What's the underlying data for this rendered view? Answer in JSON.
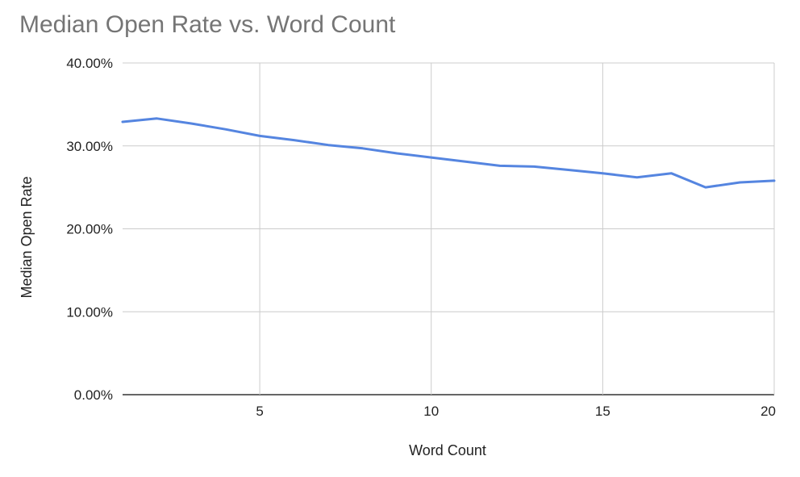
{
  "chart_data": {
    "type": "line",
    "title": "Median Open Rate vs. Word Count",
    "xlabel": "Word Count",
    "ylabel": "Median Open Rate",
    "xlim": [
      1,
      20
    ],
    "ylim": [
      0,
      0.4
    ],
    "x_ticks": [
      5,
      10,
      15,
      20
    ],
    "x_tick_labels": [
      "5",
      "10",
      "15",
      "20"
    ],
    "y_ticks": [
      0,
      0.1,
      0.2,
      0.3,
      0.4
    ],
    "y_tick_labels": [
      "0.00%",
      "10.00%",
      "20.00%",
      "30.00%",
      "40.00%"
    ],
    "grid": true,
    "legend": "none",
    "series": [
      {
        "color": "#5585e0",
        "x": [
          1,
          2,
          3,
          4,
          5,
          6,
          7,
          8,
          9,
          10,
          11,
          12,
          13,
          14,
          15,
          16,
          17,
          18,
          19,
          20
        ],
        "values": [
          0.329,
          0.333,
          0.327,
          0.32,
          0.312,
          0.307,
          0.301,
          0.297,
          0.291,
          0.286,
          0.281,
          0.276,
          0.275,
          0.271,
          0.267,
          0.262,
          0.267,
          0.25,
          0.256,
          0.258
        ]
      }
    ]
  }
}
